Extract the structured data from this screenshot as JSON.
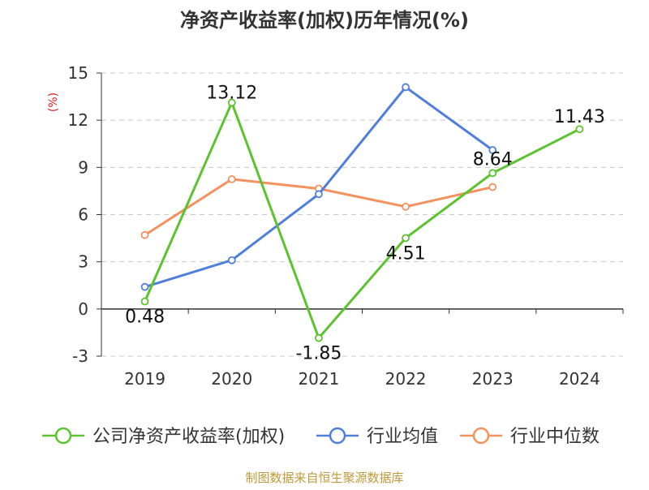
{
  "chart_data": {
    "type": "line",
    "title": "净资产收益率(加权)历年情况(%)",
    "ylabel": "(%)",
    "xlabel": "",
    "categories": [
      "2019",
      "2020",
      "2021",
      "2022",
      "2023",
      "2024"
    ],
    "ylim": [
      -3,
      15
    ],
    "yticks": [
      -3,
      0,
      3,
      6,
      9,
      12,
      15
    ],
    "grid": true,
    "legend_position": "bottom",
    "series": [
      {
        "name": "公司净资产收益率(加权)",
        "color": "#5cc22f",
        "values": [
          0.48,
          13.12,
          -1.85,
          4.51,
          8.64,
          11.43
        ],
        "data_labels": [
          "0.48",
          "13.12",
          "-1.85",
          "4.51",
          "8.64",
          "11.43"
        ]
      },
      {
        "name": "行业均值",
        "color": "#4f7fdb",
        "values": [
          1.4,
          3.1,
          7.3,
          14.1,
          10.1,
          null
        ]
      },
      {
        "name": "行业中位数",
        "color": "#f5915d",
        "values": [
          4.7,
          8.25,
          7.65,
          6.5,
          7.75,
          null
        ]
      }
    ],
    "source": "制图数据来自恒生聚源数据库",
    "colors": {
      "title": "#333333",
      "axis_text": "#333333",
      "ylabel": "#e02020",
      "grid": "#c8c8c8",
      "axis_line": "#333333",
      "source": "#c09a3a",
      "label_text": "#111111"
    }
  }
}
